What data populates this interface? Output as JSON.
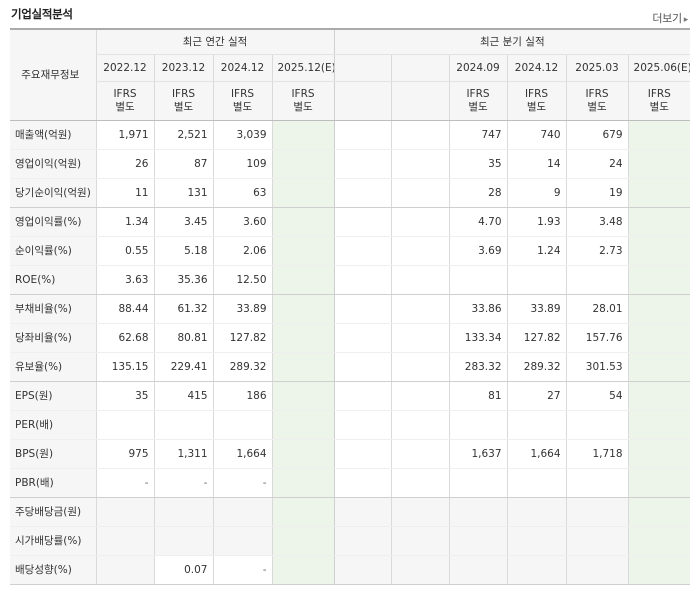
{
  "header": {
    "title": "기업실적분석",
    "more_label": "더보기",
    "more_icon": "chevron-right-icon"
  },
  "table": {
    "row_header": "주요재무정보",
    "annual_group": "최근 연간 실적",
    "quarter_group": "최근 분기 실적",
    "annual_periods": [
      "2022.12",
      "2023.12",
      "2024.12",
      "2025.12(E)"
    ],
    "quarter_periods": [
      "",
      "",
      "2024.09",
      "2024.12",
      "2025.03",
      "2025.06(E)"
    ],
    "ifrs_label": "IFRS",
    "ifrs_sub": "별도",
    "rows": [
      {
        "label": "매출액(억원)",
        "annual": [
          "1,971",
          "2,521",
          "3,039",
          ""
        ],
        "quarter": [
          "",
          "",
          "747",
          "740",
          "679",
          ""
        ]
      },
      {
        "label": "영업이익(억원)",
        "annual": [
          "26",
          "87",
          "109",
          ""
        ],
        "quarter": [
          "",
          "",
          "35",
          "14",
          "24",
          ""
        ]
      },
      {
        "label": "당기순이익(억원)",
        "annual": [
          "11",
          "131",
          "63",
          ""
        ],
        "quarter": [
          "",
          "",
          "28",
          "9",
          "19",
          ""
        ]
      },
      {
        "label": "영업이익률(%)",
        "annual": [
          "1.34",
          "3.45",
          "3.60",
          ""
        ],
        "quarter": [
          "",
          "",
          "4.70",
          "1.93",
          "3.48",
          ""
        ]
      },
      {
        "label": "순이익률(%)",
        "annual": [
          "0.55",
          "5.18",
          "2.06",
          ""
        ],
        "quarter": [
          "",
          "",
          "3.69",
          "1.24",
          "2.73",
          ""
        ]
      },
      {
        "label": "ROE(%)",
        "annual": [
          "3.63",
          "35.36",
          "12.50",
          ""
        ],
        "quarter": [
          "",
          "",
          "",
          "",
          "",
          ""
        ]
      },
      {
        "label": "부채비율(%)",
        "annual": [
          "88.44",
          "61.32",
          "33.89",
          ""
        ],
        "quarter": [
          "",
          "",
          "33.86",
          "33.89",
          "28.01",
          ""
        ]
      },
      {
        "label": "당좌비율(%)",
        "annual": [
          "62.68",
          "80.81",
          "127.82",
          ""
        ],
        "quarter": [
          "",
          "",
          "133.34",
          "127.82",
          "157.76",
          ""
        ]
      },
      {
        "label": "유보율(%)",
        "annual": [
          "135.15",
          "229.41",
          "289.32",
          ""
        ],
        "quarter": [
          "",
          "",
          "283.32",
          "289.32",
          "301.53",
          ""
        ]
      },
      {
        "label": "EPS(원)",
        "annual": [
          "35",
          "415",
          "186",
          ""
        ],
        "quarter": [
          "",
          "",
          "81",
          "27",
          "54",
          ""
        ]
      },
      {
        "label": "PER(배)",
        "annual": [
          "",
          "",
          "",
          ""
        ],
        "quarter": [
          "",
          "",
          "",
          "",
          "",
          ""
        ]
      },
      {
        "label": "BPS(원)",
        "annual": [
          "975",
          "1,311",
          "1,664",
          ""
        ],
        "quarter": [
          "",
          "",
          "1,637",
          "1,664",
          "1,718",
          ""
        ]
      },
      {
        "label": "PBR(배)",
        "annual": [
          "-",
          "-",
          "-",
          ""
        ],
        "quarter": [
          "",
          "",
          "",
          "",
          "",
          ""
        ]
      },
      {
        "label": "주당배당금(원)",
        "annual": [
          "",
          "",
          "",
          ""
        ],
        "quarter": [
          "",
          "",
          "",
          "",
          "",
          ""
        ]
      },
      {
        "label": "시가배당률(%)",
        "annual": [
          "",
          "",
          "",
          ""
        ],
        "quarter": [
          "",
          "",
          "",
          "",
          "",
          ""
        ]
      },
      {
        "label": "배당성향(%)",
        "annual": [
          "",
          "0.07",
          "-",
          ""
        ],
        "quarter": [
          "",
          "",
          "",
          "",
          "",
          ""
        ]
      }
    ]
  },
  "colors": {
    "ifrs": "#e65c00",
    "estimate_text": "#2e7d32",
    "estimate_bg": "#edf5ea",
    "header_bg": "#f6f6f6"
  }
}
